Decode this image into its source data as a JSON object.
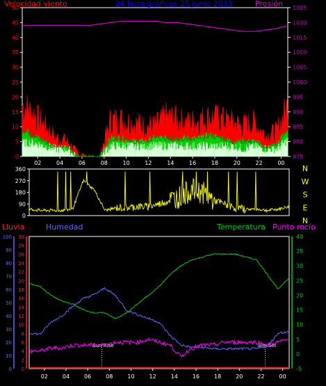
{
  "chart_data": [
    {
      "type": "line",
      "title": "24 hora gráficos  25 Junio 2013",
      "left_axis_label": "Velocidad viento",
      "right_axis_label": "Presión",
      "left_ticks": [
        "0",
        "5",
        "10",
        "15",
        "20",
        "25",
        "30",
        "35",
        "40",
        "45",
        "50"
      ],
      "right_ticks": [
        "975",
        "980",
        "985",
        "990",
        "995",
        "1000",
        "1005",
        "1010",
        "1015",
        "1020",
        "1025"
      ],
      "x_ticks": [
        "02",
        "04",
        "06",
        "08",
        "10",
        "12",
        "14",
        "16",
        "18",
        "20",
        "22",
        "00"
      ],
      "ylim_left": [
        0,
        50
      ],
      "ylim_right": [
        975,
        1025
      ],
      "x": [
        0,
        1,
        2,
        3,
        4,
        5,
        6,
        7,
        8,
        9,
        10,
        11,
        12,
        13,
        14,
        15,
        16,
        17,
        18,
        19,
        20,
        21,
        22,
        23,
        24
      ],
      "series": [
        {
          "key": "gust",
          "color": "#ff0000",
          "values": [
            17,
            14,
            10,
            6,
            5,
            1,
            0,
            0,
            12,
            12,
            11,
            10,
            10,
            13,
            12,
            11,
            12,
            13,
            12,
            11,
            10,
            11,
            7,
            8,
            17
          ]
        },
        {
          "key": "avg",
          "color": "#00cc00",
          "values": [
            9,
            7,
            5,
            3,
            3,
            0,
            0,
            0,
            6,
            6,
            5,
            5,
            6,
            6,
            6,
            6,
            6,
            7,
            6,
            5,
            5,
            5,
            3,
            4,
            9
          ]
        },
        {
          "key": "wind_white",
          "color": "#d8ffd8",
          "values": [
            4,
            4,
            3,
            2,
            2,
            0,
            0,
            0,
            3,
            3,
            3,
            3,
            3,
            3,
            3,
            3,
            3,
            3,
            3,
            3,
            2,
            3,
            2,
            2,
            5
          ]
        },
        {
          "key": "pressure",
          "color": "#cc00cc",
          "axis": "right",
          "values": [
            1019,
            1019,
            1019,
            1019,
            1019,
            1019,
            1019,
            1019.5,
            1020,
            1020.5,
            1020.5,
            1020.5,
            1020.5,
            1020,
            1020,
            1019.5,
            1019,
            1018.5,
            1018,
            1017.5,
            1017,
            1017,
            1017.5,
            1018,
            1019
          ]
        }
      ]
    },
    {
      "type": "line",
      "left_ticks": [
        "0",
        "90",
        "180",
        "270",
        "360"
      ],
      "right_ticks": [
        "N",
        "W",
        "S",
        "E",
        "N"
      ],
      "x_ticks": [
        "02",
        "04",
        "06",
        "08",
        "10",
        "12",
        "14",
        "16",
        "18",
        "20",
        "22",
        "00"
      ],
      "ylim": [
        0,
        360
      ],
      "x": [
        0,
        1,
        2,
        3,
        4,
        5,
        6,
        7,
        8,
        9,
        10,
        11,
        12,
        13,
        14,
        15,
        16,
        17,
        18,
        19,
        20,
        21,
        22,
        23,
        24
      ],
      "series": [
        {
          "key": "direction",
          "color": "#ffff00",
          "values": [
            50,
            40,
            40,
            40,
            50,
            270,
            200,
            40,
            60,
            60,
            70,
            70,
            90,
            120,
            150,
            200,
            180,
            120,
            90,
            60,
            50,
            50,
            40,
            50,
            70
          ]
        }
      ]
    },
    {
      "type": "line",
      "rain_label": "Lluvia",
      "humidity_label": "Humedad",
      "temperature_label": "Temperatura",
      "dewpoint_label": "Punto rocío",
      "sunrise_label": "Sun Rise",
      "sunset_label": "Sun Set",
      "humidity_ticks": [
        "0",
        "10",
        "20",
        "30",
        "40",
        "50",
        "60",
        "70",
        "80",
        "90",
        "100"
      ],
      "rain_ticks": [
        "0",
        "2",
        "4",
        "6",
        "8",
        "10",
        "12",
        "14",
        "16",
        "18",
        "20",
        "22",
        "24",
        "26",
        "28",
        "30"
      ],
      "temp_ticks": [
        "-5",
        "0",
        "5",
        "10",
        "15",
        "20",
        "25",
        "30",
        "35",
        "40"
      ],
      "x_ticks": [
        "02",
        "04",
        "06",
        "08",
        "10",
        "12",
        "14",
        "16",
        "18",
        "20",
        "22",
        "00"
      ],
      "sunrise_hour": 6.7,
      "sunset_hour": 21.8,
      "x": [
        0,
        1,
        2,
        3,
        4,
        5,
        6,
        7,
        8,
        9,
        10,
        11,
        12,
        13,
        14,
        15,
        16,
        17,
        18,
        19,
        20,
        21,
        22,
        23,
        24
      ],
      "series": [
        {
          "key": "temperature",
          "color": "#00cc00",
          "axis": "temp",
          "unit_range": [
            -5,
            40
          ],
          "values": [
            24,
            23,
            20,
            18,
            17,
            15,
            14,
            14,
            12,
            14,
            17,
            20,
            23,
            27,
            30,
            32,
            33,
            34,
            34,
            34,
            33,
            32,
            27,
            22,
            26
          ]
        },
        {
          "key": "humidity",
          "color": "#6666ff",
          "axis": "humidity",
          "unit_range": [
            0,
            100
          ],
          "values": [
            27,
            26,
            35,
            40,
            47,
            53,
            56,
            61,
            55,
            44,
            41,
            38,
            35,
            25,
            18,
            16,
            16,
            15,
            15,
            15,
            15,
            15,
            17,
            27,
            28
          ]
        },
        {
          "key": "dewpoint",
          "color": "#ff00ff",
          "axis": "temp",
          "unit_range": [
            -5,
            40
          ],
          "values": [
            1,
            1,
            2,
            2,
            3,
            3,
            3,
            3,
            4,
            4,
            4,
            5,
            4,
            3,
            -1,
            2,
            3,
            3,
            4,
            4,
            4,
            4,
            3,
            4,
            5
          ]
        },
        {
          "key": "rain",
          "color": "#ff2222",
          "axis": "rain",
          "unit_range": [
            0,
            30
          ],
          "values": [
            0,
            0,
            0,
            0,
            0,
            0,
            0,
            0,
            0,
            0,
            0,
            0,
            0,
            0,
            0,
            0,
            0,
            0,
            0,
            0,
            0,
            0,
            0,
            0,
            0
          ]
        }
      ]
    }
  ],
  "colors": {
    "title": "#0000ff",
    "left_label": "#ff0000",
    "right_label": "#cc00cc",
    "axis": "#ffffff",
    "direction_text": "#ffff00",
    "humidity_text": "#6666ff",
    "rain_text": "#ff2222",
    "temp_text": "#00cc00",
    "dew_text": "#ff00ff"
  }
}
